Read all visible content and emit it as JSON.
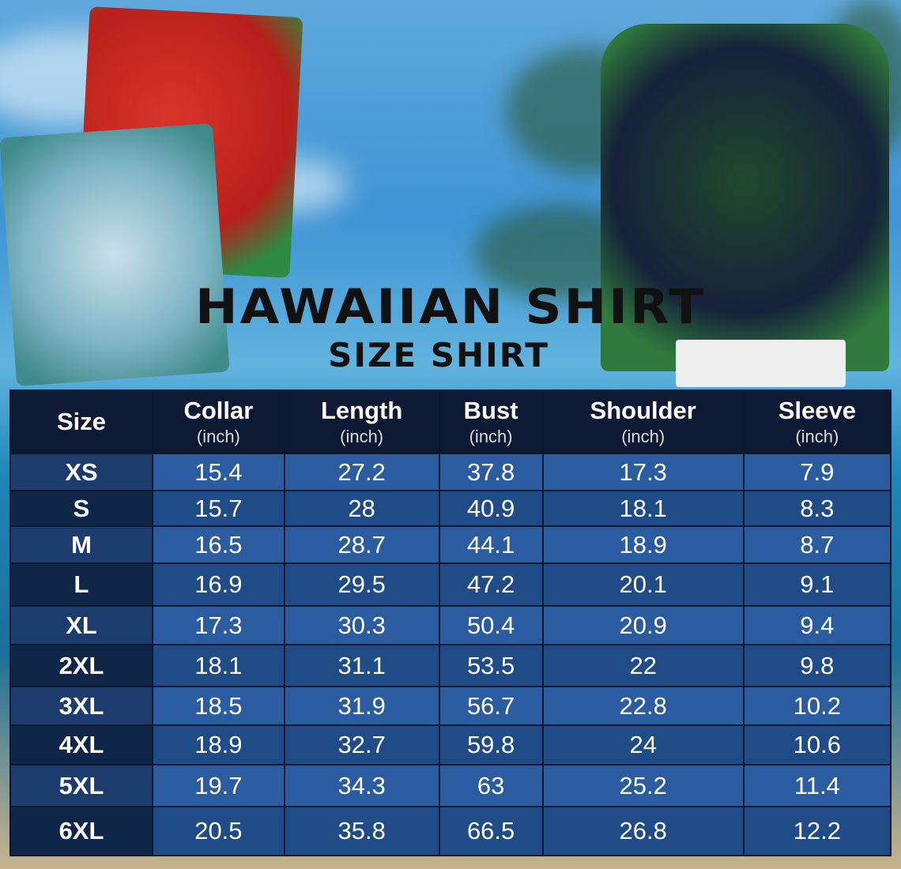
{
  "title": "HAWAIIAN SHIRT",
  "subtitle": "SIZE SHIRT",
  "colors": {
    "header": "#0e1a33",
    "row_light": "#2a5c9f",
    "row_dark": "#1f4b86",
    "size_col": "#102648"
  },
  "table": {
    "headers": [
      {
        "label": "Size",
        "unit": ""
      },
      {
        "label": "Collar",
        "unit": "(inch)"
      },
      {
        "label": "Length",
        "unit": "(inch)"
      },
      {
        "label": "Bust",
        "unit": "(inch)"
      },
      {
        "label": "Shoulder",
        "unit": "(inch)"
      },
      {
        "label": "Sleeve",
        "unit": "(inch)"
      }
    ],
    "rows": [
      [
        "XS",
        "15.4",
        "27.2",
        "37.8",
        "17.3",
        "7.9"
      ],
      [
        "S",
        "15.7",
        "28",
        "40.9",
        "18.1",
        "8.3"
      ],
      [
        "M",
        "16.5",
        "28.7",
        "44.1",
        "18.9",
        "8.7"
      ],
      [
        "L",
        "16.9",
        "29.5",
        "47.2",
        "20.1",
        "9.1"
      ],
      [
        "XL",
        "17.3",
        "30.3",
        "50.4",
        "20.9",
        "9.4"
      ],
      [
        "2XL",
        "18.1",
        "31.1",
        "53.5",
        "22",
        "9.8"
      ],
      [
        "3XL",
        "18.5",
        "31.9",
        "56.7",
        "22.8",
        "10.2"
      ],
      [
        "4XL",
        "18.9",
        "32.7",
        "59.8",
        "24",
        "10.6"
      ],
      [
        "5XL",
        "19.7",
        "34.3",
        "63",
        "25.2",
        "11.4"
      ],
      [
        "6XL",
        "20.5",
        "35.8",
        "66.5",
        "26.8",
        "12.2"
      ]
    ]
  }
}
